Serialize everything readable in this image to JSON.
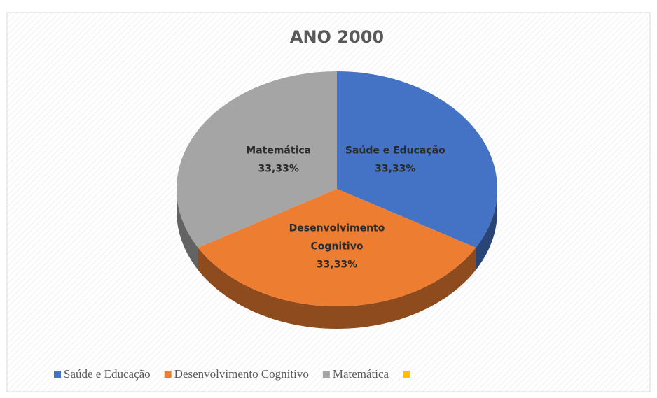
{
  "chart_data": {
    "type": "pie3d",
    "title": "ANO 2000",
    "categories": [
      "Saúde e Educação",
      "Desenvolvimento Cognitivo",
      "Matemática",
      null
    ],
    "values": [
      33.33,
      33.33,
      33.33,
      0
    ],
    "value_labels": [
      "33,33%",
      "33,33%",
      "33,33%",
      null
    ],
    "colors": [
      "#4472c4",
      "#ed7d31",
      "#a5a5a5",
      "#ffc000"
    ],
    "legend": "bottom"
  }
}
